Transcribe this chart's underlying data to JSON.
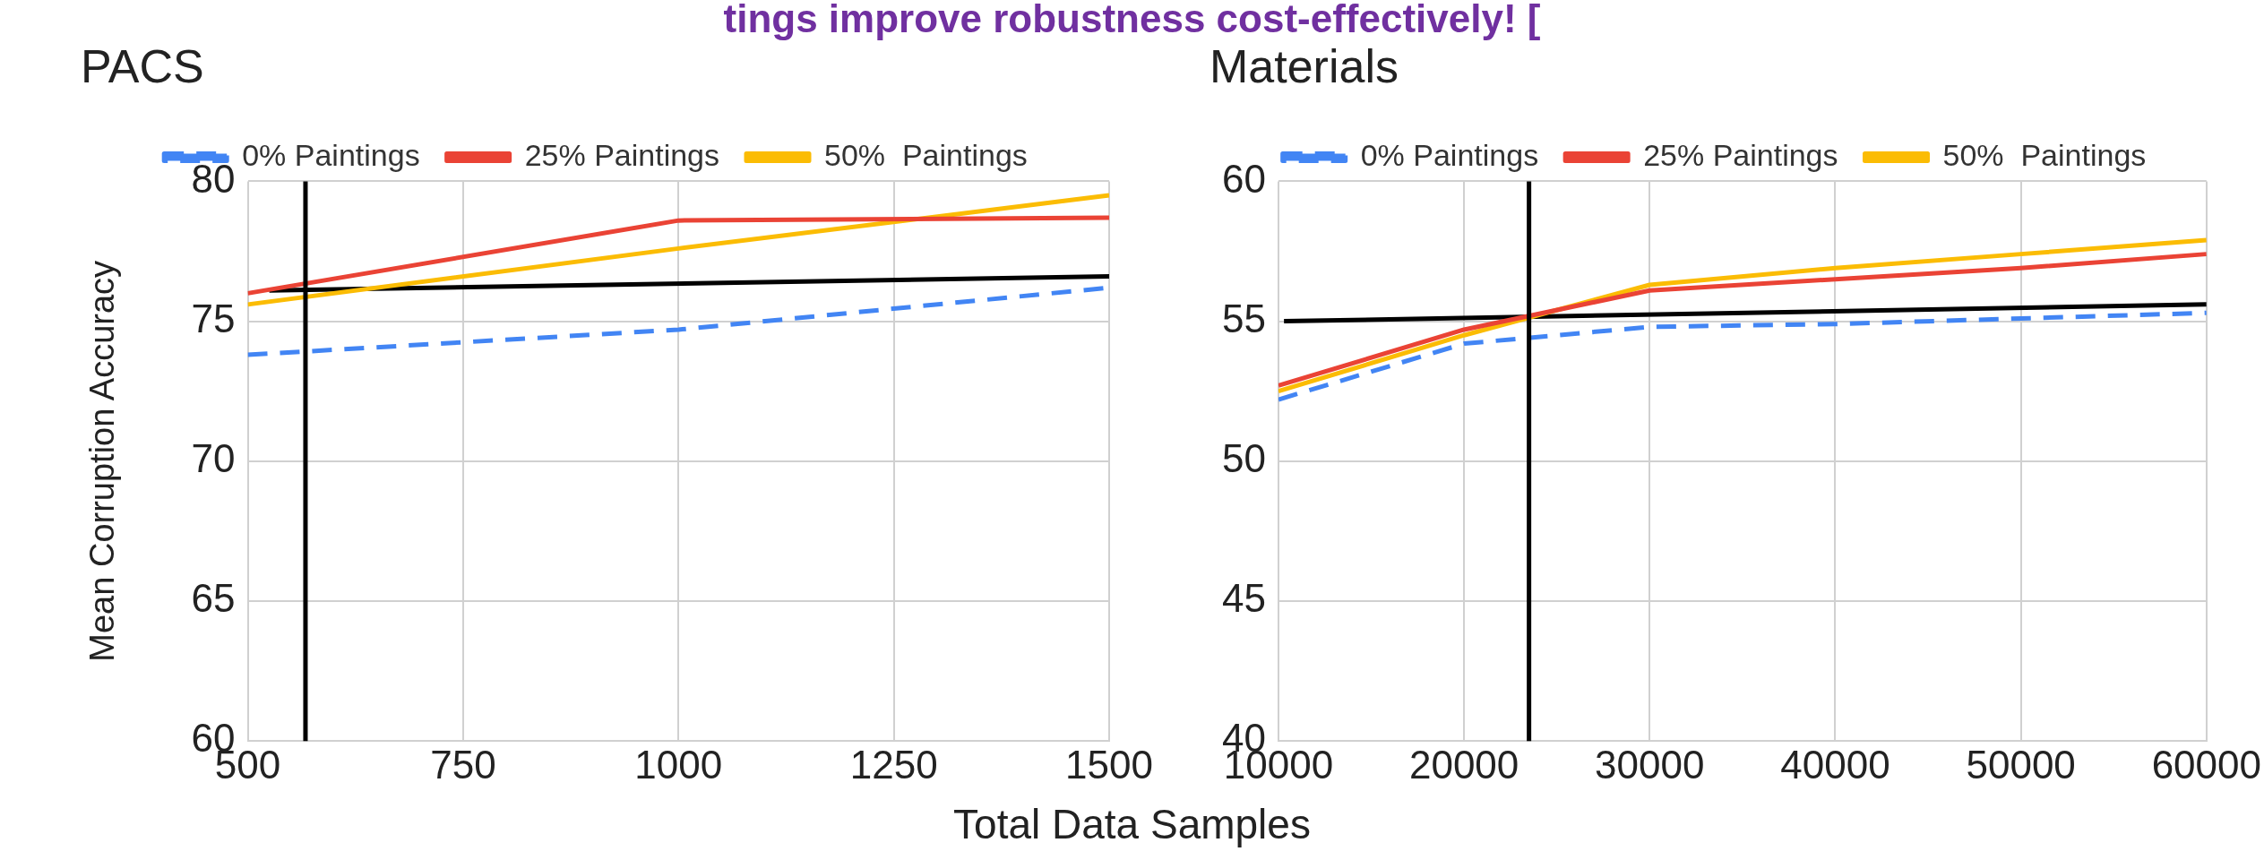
{
  "chart_data": [
    {
      "type": "line",
      "title": "PACS",
      "annotations": [
        "tings improve robustness cost-effectively! ["
      ],
      "xlabel": "Total Data Samples",
      "ylabel": "Mean Corruption Accuracy",
      "x": [
        500,
        1000,
        1500
      ],
      "xlim": [
        500,
        1500
      ],
      "xticks": [
        500,
        750,
        1000,
        1250,
        1500
      ],
      "ylim": [
        60,
        80
      ],
      "yticks": [
        60,
        65,
        70,
        75,
        80
      ],
      "grid": true,
      "legend": "top",
      "marker": "none",
      "series": [
        {
          "name": "0% Paintings",
          "color": "#4285f4",
          "line_style": "dashed",
          "values": [
            73.8,
            74.7,
            76.2
          ]
        },
        {
          "name": "25% Paintings",
          "color": "#ea4335",
          "values": [
            76.0,
            78.6,
            78.7
          ]
        },
        {
          "name": "50%  Paintings",
          "color": "#fbbc04",
          "values": [
            75.6,
            77.6,
            79.5
          ]
        },
        {
          "color": "#000000",
          "x": [
            525,
            1500
          ],
          "values": [
            76.1,
            76.6
          ]
        }
      ],
      "ref_lines": [
        {
          "axis": "x",
          "value": 567,
          "color": "#000000"
        }
      ]
    },
    {
      "type": "line",
      "title": "Materials",
      "x": [
        10000,
        20000,
        30000,
        40000,
        50000,
        60000
      ],
      "xlim": [
        10000,
        60000
      ],
      "xticks": [
        10000,
        20000,
        30000,
        40000,
        50000,
        60000
      ],
      "ylim": [
        40,
        60
      ],
      "yticks": [
        40,
        45,
        50,
        55,
        60
      ],
      "grid": true,
      "legend": "top",
      "marker": "none",
      "series": [
        {
          "name": "0% Paintings",
          "color": "#4285f4",
          "line_style": "dashed",
          "values": [
            52.2,
            54.2,
            54.8,
            54.9,
            55.1,
            55.3
          ]
        },
        {
          "name": "25% Paintings",
          "color": "#ea4335",
          "values": [
            52.7,
            54.7,
            56.1,
            56.5,
            56.9,
            57.4
          ]
        },
        {
          "name": "50%  Paintings",
          "color": "#fbbc04",
          "values": [
            52.5,
            54.5,
            56.3,
            56.9,
            57.4,
            57.9
          ]
        },
        {
          "color": "#000000",
          "x": [
            10300,
            60000
          ],
          "values": [
            55.0,
            55.6
          ]
        }
      ],
      "ref_lines": [
        {
          "axis": "x",
          "value": 23500,
          "color": "#000000"
        }
      ]
    }
  ]
}
